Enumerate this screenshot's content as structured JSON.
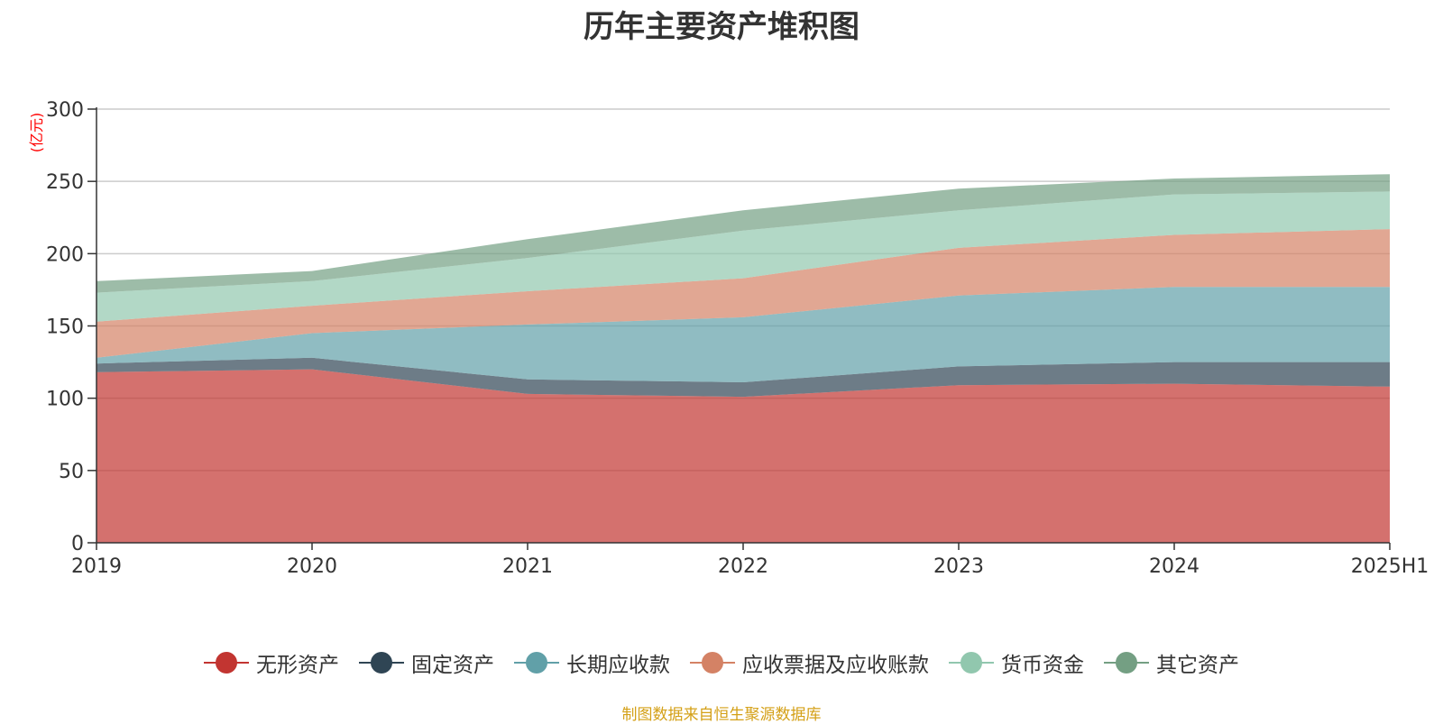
{
  "chart_data": {
    "type": "area",
    "stacked": true,
    "title": "历年主要资产堆积图",
    "unit_label": "(亿元)",
    "categories": [
      "2019",
      "2020",
      "2021",
      "2022",
      "2023",
      "2024",
      "2025H1"
    ],
    "ylim": [
      0,
      300
    ],
    "yticks": [
      "0",
      "50",
      "100",
      "150",
      "200",
      "250",
      "300"
    ],
    "grid": true,
    "legend_position": "bottom",
    "series": [
      {
        "name": "无形资产",
        "color": "#c23531",
        "values": [
          118,
          120,
          103,
          101,
          109,
          110,
          108
        ]
      },
      {
        "name": "固定资产",
        "color": "#2f4554",
        "values": [
          6,
          8,
          10,
          10,
          13,
          15,
          17
        ]
      },
      {
        "name": "长期应收款",
        "color": "#61a0a8",
        "values": [
          4,
          17,
          38,
          45,
          49,
          52,
          52
        ]
      },
      {
        "name": "应收票据及应收账款",
        "color": "#d48265",
        "values": [
          25,
          19,
          23,
          27,
          33,
          36,
          40
        ]
      },
      {
        "name": "货币资金",
        "color": "#91c7ae",
        "values": [
          20,
          17,
          23,
          33,
          26,
          28,
          26
        ]
      },
      {
        "name": "其它资产",
        "color": "#749f83",
        "values": [
          8,
          7,
          13,
          14,
          15,
          11,
          12
        ]
      }
    ]
  },
  "source_note": "制图数据来自恒生聚源数据库"
}
